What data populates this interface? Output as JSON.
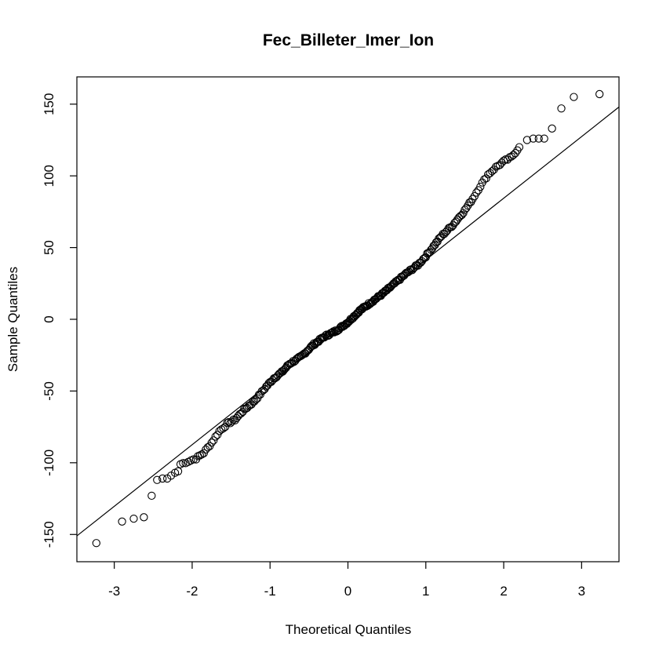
{
  "chart_data": {
    "type": "scatter",
    "title": "Fec_Billeter_Imer_Ion",
    "xlabel": "Theoretical Quantiles",
    "ylabel": "Sample Quantiles",
    "xlim": [
      -3.48,
      3.48
    ],
    "ylim": [
      -169,
      169
    ],
    "xticks": [
      -3,
      -2,
      -1,
      0,
      1,
      2,
      3
    ],
    "xtick_labels": [
      "-3",
      "-2",
      "-1",
      "0",
      "1",
      "2",
      "3"
    ],
    "yticks": [
      -150,
      -100,
      -50,
      0,
      50,
      100,
      150
    ],
    "ytick_labels": [
      "-150",
      "-100",
      "-50",
      "0",
      "50",
      "100",
      "150"
    ],
    "reference_line": {
      "type": "qqline",
      "points": [
        [
          -3.48,
          -151
        ],
        [
          3.48,
          148
        ]
      ]
    },
    "tail_points": [
      [
        -3.23,
        -156
      ],
      [
        -2.9,
        -141
      ],
      [
        -2.75,
        -139
      ],
      [
        -2.62,
        -138
      ],
      [
        -2.52,
        -123
      ],
      [
        -2.45,
        -112
      ],
      [
        -2.38,
        -111
      ],
      [
        -2.32,
        -111
      ],
      [
        -2.27,
        -109
      ],
      [
        -2.22,
        -107
      ],
      [
        -2.18,
        -106
      ],
      [
        2.62,
        133
      ],
      [
        2.74,
        147
      ],
      [
        2.9,
        155
      ],
      [
        3.23,
        157
      ],
      [
        2.52,
        126
      ],
      [
        2.45,
        126
      ],
      [
        2.38,
        126
      ],
      [
        2.3,
        125
      ]
    ],
    "body_curve": [
      [
        -2.15,
        -101
      ],
      [
        -1.95,
        -97
      ],
      [
        -1.85,
        -93
      ],
      [
        -1.75,
        -86
      ],
      [
        -1.65,
        -78
      ],
      [
        -1.55,
        -73
      ],
      [
        -1.45,
        -70
      ],
      [
        -1.35,
        -64
      ],
      [
        -1.2,
        -57
      ],
      [
        -1.05,
        -47
      ],
      [
        -0.95,
        -41
      ],
      [
        -0.85,
        -37
      ],
      [
        -0.75,
        -31
      ],
      [
        -0.6,
        -26
      ],
      [
        -0.45,
        -18
      ],
      [
        -0.3,
        -12
      ],
      [
        -0.15,
        -8
      ],
      [
        0.0,
        -2
      ],
      [
        0.15,
        6
      ],
      [
        0.3,
        12
      ],
      [
        0.45,
        18
      ],
      [
        0.6,
        25
      ],
      [
        0.75,
        32
      ],
      [
        0.9,
        38
      ],
      [
        1.0,
        44
      ],
      [
        1.1,
        51
      ],
      [
        1.2,
        58
      ],
      [
        1.35,
        66
      ],
      [
        1.5,
        76
      ],
      [
        1.6,
        84
      ],
      [
        1.7,
        93
      ],
      [
        1.8,
        101
      ],
      [
        1.9,
        106
      ],
      [
        2.0,
        110
      ],
      [
        2.1,
        113
      ],
      [
        2.2,
        120
      ]
    ],
    "grid": false,
    "legend": "none"
  }
}
